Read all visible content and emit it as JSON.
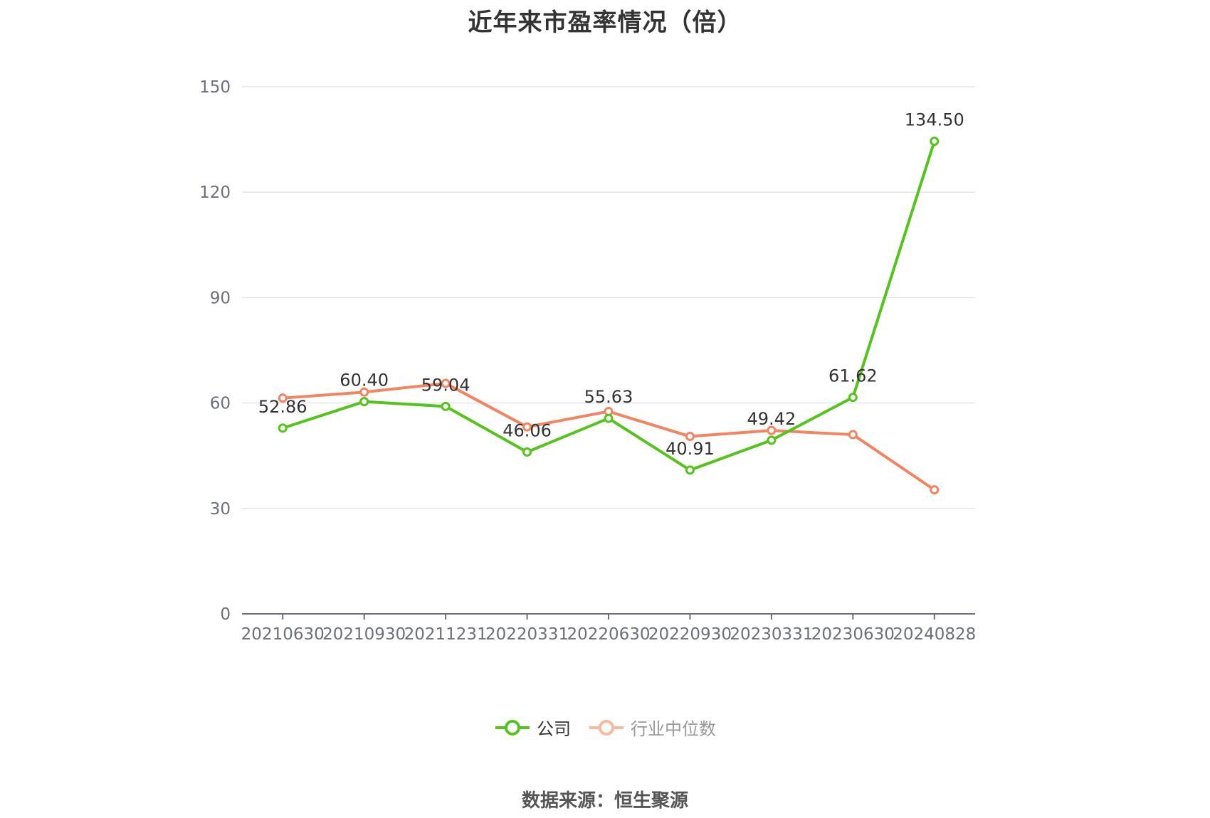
{
  "chart_data": {
    "type": "line",
    "title": "近年来市盈率情况（倍）",
    "categories": [
      "20210630",
      "20210930",
      "20211231",
      "20220331",
      "20220630",
      "20220930",
      "20230331",
      "20230630",
      "20240828"
    ],
    "series": [
      {
        "name": "公司",
        "color": "#52c41a",
        "values": [
          52.86,
          60.4,
          59.04,
          46.06,
          55.63,
          40.91,
          49.42,
          61.62,
          134.5
        ],
        "labels": [
          "52.86",
          "60.40",
          "59.04",
          "46.06",
          "55.63",
          "40.91",
          "49.42",
          "61.62",
          "134.50"
        ]
      },
      {
        "name": "行业中位数",
        "color": "#f4845f",
        "legend_color": "#f9b99f",
        "values": [
          61.4,
          63.1,
          65.6,
          53.2,
          57.6,
          50.5,
          52.2,
          51.0,
          35.3
        ]
      }
    ],
    "ylim": [
      0,
      150
    ],
    "yticks": [
      "0",
      "30",
      "60",
      "90",
      "120",
      "150"
    ],
    "xlabel": "",
    "ylabel": "",
    "grid": true,
    "legend_position": "bottom-center"
  },
  "source": "数据来源：恒生聚源"
}
